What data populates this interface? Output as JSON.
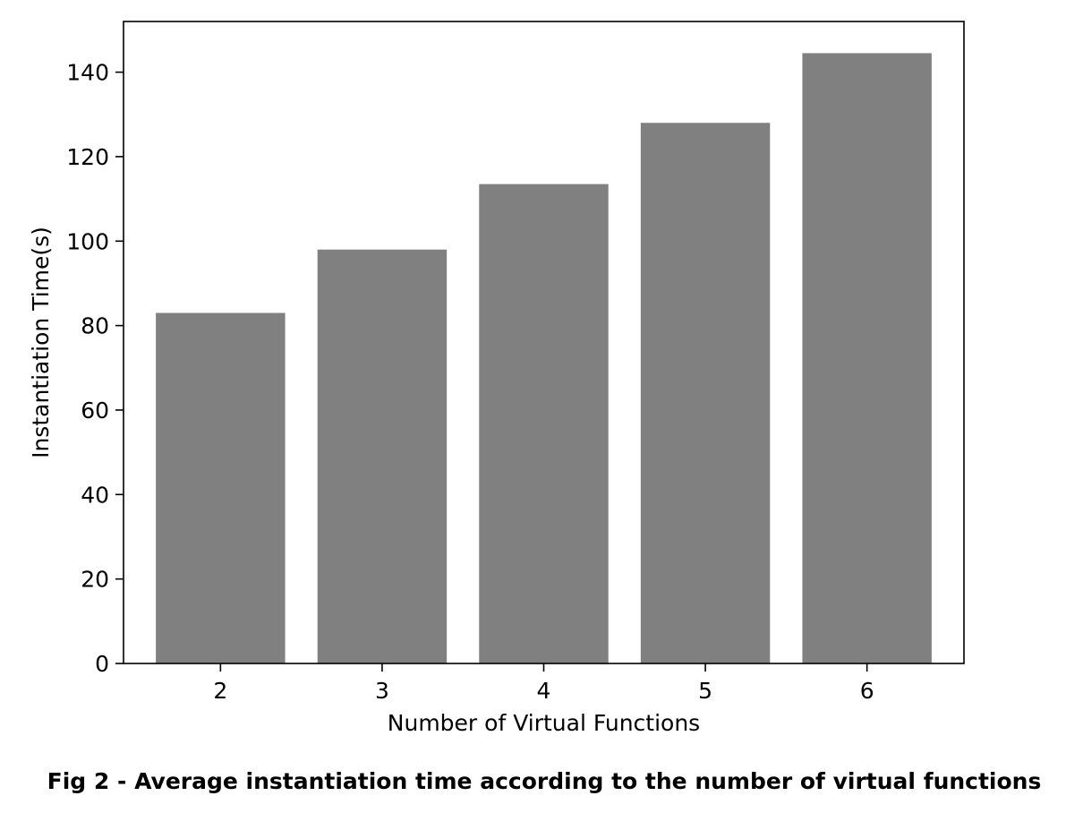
{
  "caption": "Fig 2 - Average instantiation time according to the number of virtual functions",
  "chart_data": {
    "type": "bar",
    "categories": [
      "2",
      "3",
      "4",
      "5",
      "6"
    ],
    "values": [
      83,
      98,
      113.5,
      128,
      144.5
    ],
    "xlabel": "Number of Virtual Functions",
    "ylabel": "Instantiation Time(s)",
    "ylim": [
      0,
      152
    ],
    "yticks": [
      0,
      20,
      40,
      60,
      80,
      100,
      120,
      140
    ],
    "bar_color": "#808080",
    "grid": false,
    "legend": false
  }
}
